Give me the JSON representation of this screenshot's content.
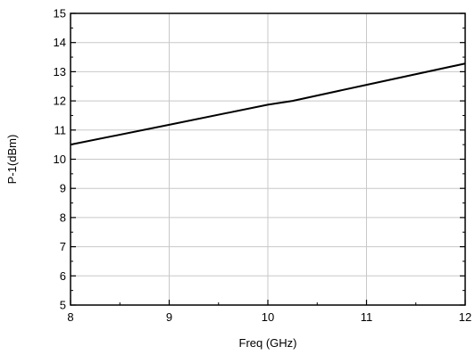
{
  "chart_data": {
    "type": "line",
    "title": "",
    "xlabel": "Freq (GHz)",
    "ylabel": "P-1(dBm)",
    "xlim": [
      8,
      12
    ],
    "ylim": [
      5,
      15
    ],
    "xticks": [
      8,
      9,
      10,
      11,
      12
    ],
    "yticks": [
      5,
      6,
      7,
      8,
      9,
      10,
      11,
      12,
      13,
      14,
      15
    ],
    "grid": true,
    "series": [
      {
        "color": "#000000",
        "x": [
          8.0,
          9.0,
          10.0,
          10.25,
          11.0,
          12.0
        ],
        "y": [
          10.5,
          11.18,
          11.87,
          12.0,
          12.55,
          13.28
        ]
      }
    ]
  }
}
